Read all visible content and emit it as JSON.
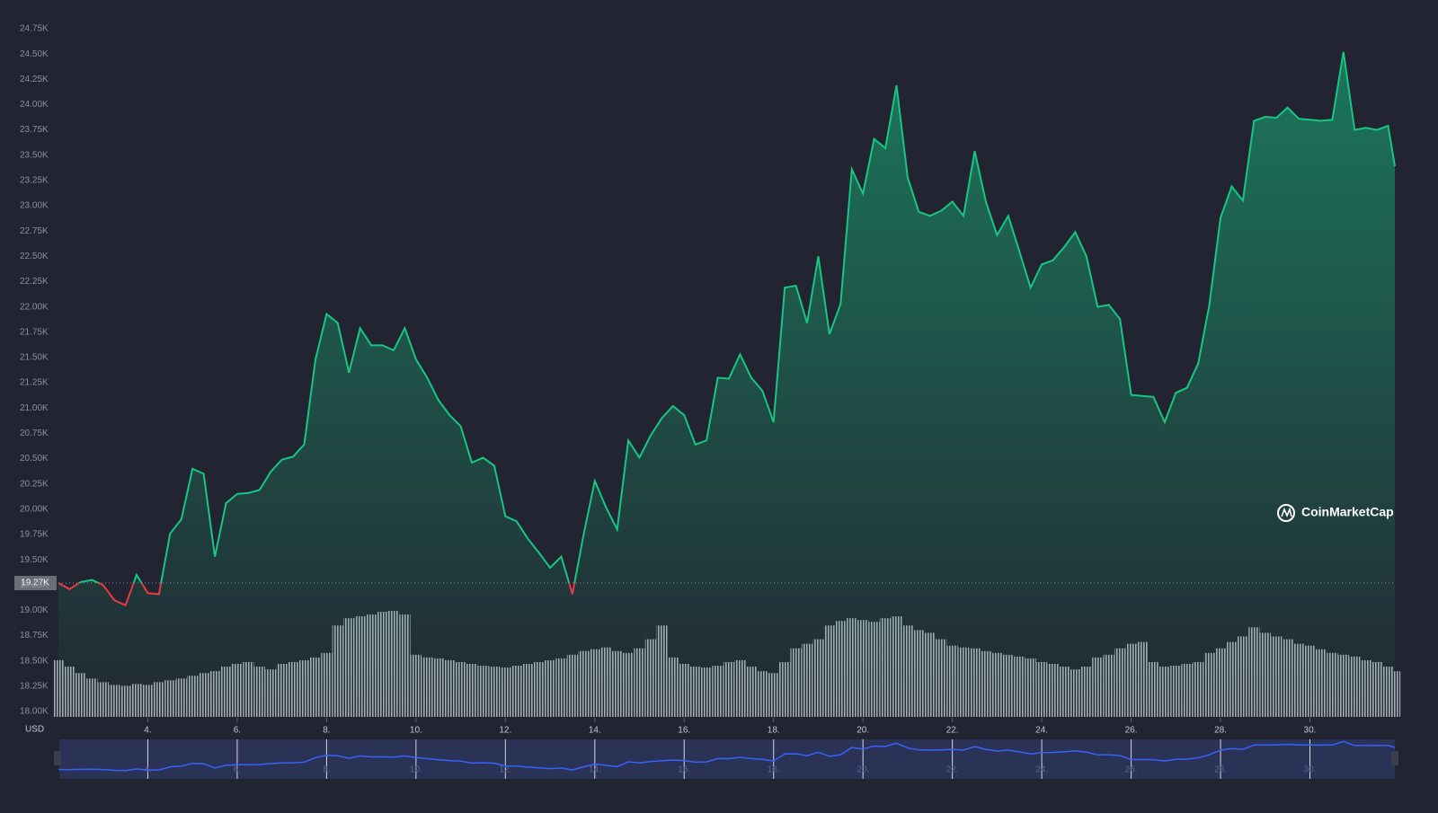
{
  "chart_data": {
    "type": "area",
    "currency_label": "USD",
    "watermark": "CoinMarketCap",
    "baseline": {
      "value": 19270,
      "label": "19.27K"
    },
    "colors": {
      "up": "#16c784",
      "down": "#ea3943",
      "volume": "#a8acb8",
      "navigator": "#3861fb"
    },
    "xlim": [
      2,
      31.9
    ],
    "xticks": [
      {
        "value": 4,
        "label": "4."
      },
      {
        "value": 6,
        "label": "6."
      },
      {
        "value": 8,
        "label": "8."
      },
      {
        "value": 10,
        "label": "10."
      },
      {
        "value": 12,
        "label": "12."
      },
      {
        "value": 14,
        "label": "14."
      },
      {
        "value": 16,
        "label": "16."
      },
      {
        "value": 18,
        "label": "18."
      },
      {
        "value": 20,
        "label": "20."
      },
      {
        "value": 22,
        "label": "22."
      },
      {
        "value": 24,
        "label": "24."
      },
      {
        "value": 26,
        "label": "26."
      },
      {
        "value": 28,
        "label": "28."
      },
      {
        "value": 30,
        "label": "30."
      }
    ],
    "ylim": [
      18000,
      24750
    ],
    "yticks": [
      {
        "value": 18000,
        "label": "18.00K"
      },
      {
        "value": 18250,
        "label": "18.25K"
      },
      {
        "value": 18500,
        "label": "18.50K"
      },
      {
        "value": 18750,
        "label": "18.75K"
      },
      {
        "value": 19000,
        "label": "19.00K"
      },
      {
        "value": 19250,
        "label": "19.25K"
      },
      {
        "value": 19500,
        "label": "19.50K"
      },
      {
        "value": 19750,
        "label": "19.75K"
      },
      {
        "value": 20000,
        "label": "20.00K"
      },
      {
        "value": 20250,
        "label": "20.25K"
      },
      {
        "value": 20500,
        "label": "20.50K"
      },
      {
        "value": 20750,
        "label": "20.75K"
      },
      {
        "value": 21000,
        "label": "21.00K"
      },
      {
        "value": 21250,
        "label": "21.25K"
      },
      {
        "value": 21500,
        "label": "21.50K"
      },
      {
        "value": 21750,
        "label": "21.75K"
      },
      {
        "value": 22000,
        "label": "22.00K"
      },
      {
        "value": 22250,
        "label": "22.25K"
      },
      {
        "value": 22500,
        "label": "22.50K"
      },
      {
        "value": 22750,
        "label": "22.75K"
      },
      {
        "value": 23000,
        "label": "23.00K"
      },
      {
        "value": 23250,
        "label": "23.25K"
      },
      {
        "value": 23500,
        "label": "23.50K"
      },
      {
        "value": 23750,
        "label": "23.75K"
      },
      {
        "value": 24000,
        "label": "24.00K"
      },
      {
        "value": 24250,
        "label": "24.25K"
      },
      {
        "value": 24500,
        "label": "24.50K"
      },
      {
        "value": 24750,
        "label": "24.75K"
      }
    ],
    "x": [
      2,
      2.25,
      2.5,
      2.75,
      3,
      3.25,
      3.5,
      3.75,
      4,
      4.25,
      4.5,
      4.75,
      5,
      5.25,
      5.5,
      5.75,
      6,
      6.25,
      6.5,
      6.75,
      7,
      7.25,
      7.5,
      7.75,
      8,
      8.25,
      8.5,
      8.75,
      9,
      9.25,
      9.5,
      9.75,
      10,
      10.25,
      10.5,
      10.75,
      11,
      11.25,
      11.5,
      11.75,
      12,
      12.25,
      12.5,
      12.75,
      13,
      13.25,
      13.5,
      13.75,
      14,
      14.25,
      14.5,
      14.75,
      15,
      15.25,
      15.5,
      15.75,
      16,
      16.25,
      16.5,
      16.75,
      17,
      17.25,
      17.5,
      17.75,
      18,
      18.25,
      18.5,
      18.75,
      19,
      19.25,
      19.5,
      19.75,
      20,
      20.25,
      20.5,
      20.75,
      21,
      21.25,
      21.5,
      21.75,
      22,
      22.25,
      22.5,
      22.75,
      23,
      23.25,
      23.5,
      23.75,
      24,
      24.25,
      24.5,
      24.75,
      25,
      25.25,
      25.5,
      25.75,
      26,
      26.25,
      26.5,
      26.75,
      27,
      27.25,
      27.5,
      27.75,
      28,
      28.25,
      28.5,
      28.75,
      29,
      29.25,
      29.5,
      29.75,
      30,
      30.25,
      30.5,
      30.75,
      31,
      31.25,
      31.5,
      31.75,
      31.9
    ],
    "values": [
      19270,
      19210,
      19280,
      19300,
      19250,
      19100,
      19050,
      19350,
      19170,
      19160,
      19760,
      19900,
      20400,
      20350,
      19530,
      20060,
      20150,
      20160,
      20190,
      20370,
      20490,
      20520,
      20640,
      21480,
      21930,
      21840,
      21350,
      21790,
      21620,
      21620,
      21570,
      21790,
      21480,
      21300,
      21080,
      20930,
      20820,
      20460,
      20510,
      20430,
      19930,
      19880,
      19710,
      19570,
      19420,
      19530,
      19160,
      19750,
      20280,
      20020,
      19800,
      20680,
      20510,
      20730,
      20900,
      21020,
      20930,
      20640,
      20680,
      21300,
      21290,
      21530,
      21300,
      21170,
      20860,
      22190,
      22210,
      21840,
      22500,
      21730,
      22030,
      23360,
      23120,
      23660,
      23570,
      24190,
      23280,
      22940,
      22900,
      22950,
      23040,
      22900,
      23540,
      23040,
      22710,
      22900,
      22550,
      22190,
      22420,
      22460,
      22590,
      22740,
      22500,
      22000,
      22020,
      21880,
      21130,
      21120,
      21110,
      20860,
      21150,
      21200,
      21440,
      22020,
      22880,
      23190,
      23050,
      23840,
      23880,
      23870,
      23970,
      23860,
      23850,
      23840,
      23850,
      24520,
      23750,
      23770,
      23750,
      23790,
      23390
    ],
    "volume": [
      62,
      55,
      48,
      42,
      38,
      35,
      34,
      36,
      35,
      38,
      40,
      42,
      45,
      48,
      50,
      55,
      58,
      60,
      55,
      52,
      58,
      60,
      62,
      65,
      70,
      100,
      108,
      110,
      112,
      115,
      116,
      112,
      68,
      65,
      64,
      62,
      60,
      58,
      56,
      55,
      54,
      56,
      58,
      60,
      62,
      64,
      68,
      72,
      74,
      76,
      72,
      70,
      75,
      85,
      100,
      65,
      58,
      55,
      54,
      56,
      60,
      62,
      55,
      50,
      48,
      60,
      75,
      80,
      85,
      100,
      105,
      108,
      106,
      104,
      108,
      110,
      100,
      95,
      92,
      85,
      78,
      76,
      75,
      72,
      70,
      68,
      66,
      64,
      60,
      58,
      55,
      52,
      55,
      65,
      68,
      75,
      80,
      82,
      60,
      55,
      56,
      58,
      60,
      70,
      75,
      82,
      88,
      98,
      92,
      88,
      85,
      80,
      78,
      74,
      70,
      68,
      66,
      62,
      60,
      55,
      50
    ]
  }
}
